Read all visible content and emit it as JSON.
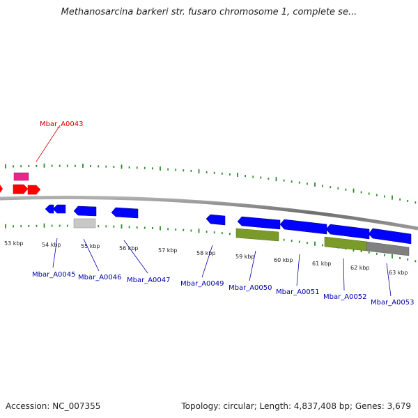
{
  "title": "Methanosarcina barkeri str. fusaro chromosome 1, complete se...",
  "accession_text": "Accession: NC_007355",
  "topology_text": "Topology: circular; Length: 4,837,408 bp; Genes: 3,679",
  "colors": {
    "forward_cds": "#ff0000",
    "reverse_cds": "#0000ff",
    "forward_feature": "#e8268a",
    "reverse_feature_a": "#c8c8c8",
    "reverse_feature_b": "#7a9a2a",
    "reverse_feature_c": "#808080",
    "tick": "#2a8a2a",
    "label_forward": "#cc0000",
    "label_reverse": "#0000aa"
  },
  "kbp_labels": [
    "53 kbp",
    "54 kbp",
    "55 kbp",
    "56 kbp",
    "57 kbp",
    "58 kbp",
    "59 kbp",
    "60 kbp",
    "61 kbp",
    "62 kbp",
    "63 kbp"
  ],
  "gene_labels": [
    {
      "text": "Mbar_A0043",
      "strand": "forward"
    },
    {
      "text": "Mbar_A0045",
      "strand": "reverse"
    },
    {
      "text": "Mbar_A0046",
      "strand": "reverse"
    },
    {
      "text": "Mbar_A0047",
      "strand": "reverse"
    },
    {
      "text": "Mbar_A0049",
      "strand": "reverse"
    },
    {
      "text": "Mbar_A0050",
      "strand": "reverse"
    },
    {
      "text": "Mbar_A0051",
      "strand": "reverse"
    },
    {
      "text": "Mbar_A0052",
      "strand": "reverse"
    },
    {
      "text": "Mbar_A0053",
      "strand": "reverse"
    }
  ]
}
